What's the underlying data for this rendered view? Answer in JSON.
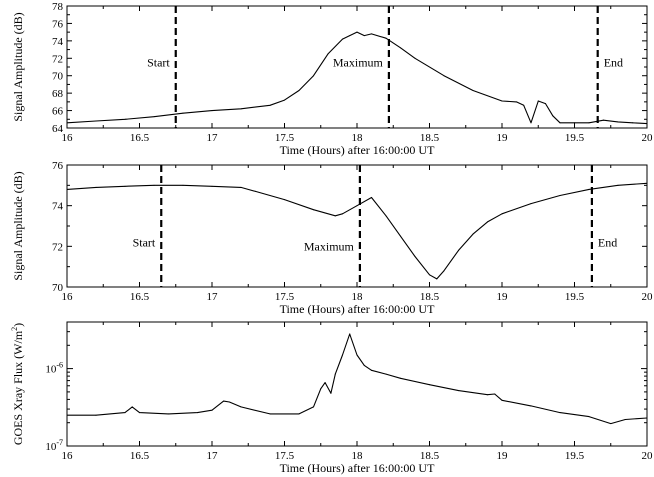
{
  "chart_data": [
    {
      "type": "line",
      "xlabel": "Time (Hours) after 16:00:00 UT",
      "ylabel": "Signal Amplitude (dB)",
      "xlim": [
        16,
        20
      ],
      "ylim": [
        64,
        78
      ],
      "xticks": [
        "16",
        "16.5",
        "17",
        "17.5",
        "18",
        "18.5",
        "19",
        "19.5",
        "20"
      ],
      "yticks": [
        "64",
        "66",
        "68",
        "70",
        "72",
        "74",
        "76",
        "78"
      ],
      "markers": [
        {
          "label": "Start",
          "x": 16.75,
          "label_y": 71.5
        },
        {
          "label": "Maximum",
          "x": 18.22,
          "label_y": 71.5
        },
        {
          "label": "End",
          "x": 19.66,
          "label_y": 71.5
        }
      ],
      "series": [
        {
          "x": [
            16.0,
            16.2,
            16.4,
            16.6,
            16.8,
            17.0,
            17.2,
            17.4,
            17.5,
            17.6,
            17.7,
            17.8,
            17.9,
            17.95,
            18.0,
            18.05,
            18.1,
            18.2,
            18.3,
            18.4,
            18.6,
            18.8,
            19.0,
            19.1,
            19.15,
            19.2,
            19.25,
            19.3,
            19.35,
            19.4,
            19.5,
            19.6,
            19.7,
            19.8,
            19.9,
            20.0
          ],
          "y": [
            64.6,
            64.8,
            65.0,
            65.3,
            65.7,
            66.0,
            66.2,
            66.6,
            67.2,
            68.3,
            70.0,
            72.5,
            74.2,
            74.6,
            75.0,
            74.6,
            74.8,
            74.3,
            73.2,
            72.0,
            70.0,
            68.3,
            67.1,
            67.0,
            66.6,
            64.6,
            67.1,
            66.8,
            65.4,
            64.6,
            64.6,
            64.6,
            64.9,
            64.7,
            64.6,
            64.5
          ]
        }
      ]
    },
    {
      "type": "line",
      "xlabel": "Time (Hours) after 16:00:00 UT",
      "ylabel": "Signal Amplitude (dB)",
      "xlim": [
        16,
        20
      ],
      "ylim": [
        70,
        76
      ],
      "xticks": [
        "16",
        "16.5",
        "17",
        "17.5",
        "18",
        "18.5",
        "19",
        "19.5",
        "20"
      ],
      "yticks": [
        "70",
        "72",
        "74",
        "76"
      ],
      "markers": [
        {
          "label": "Start",
          "x": 16.65,
          "label_y": 72.2
        },
        {
          "label": "Maximum",
          "x": 18.02,
          "label_y": 72.0
        },
        {
          "label": "End",
          "x": 19.62,
          "label_y": 72.2
        }
      ],
      "series": [
        {
          "x": [
            16.0,
            16.2,
            16.4,
            16.6,
            16.8,
            17.0,
            17.2,
            17.3,
            17.5,
            17.7,
            17.85,
            17.9,
            18.0,
            18.1,
            18.2,
            18.3,
            18.4,
            18.5,
            18.55,
            18.6,
            18.7,
            18.8,
            18.9,
            19.0,
            19.2,
            19.4,
            19.6,
            19.8,
            20.0
          ],
          "y": [
            74.8,
            74.9,
            74.95,
            75.0,
            75.0,
            74.95,
            74.9,
            74.7,
            74.3,
            73.8,
            73.5,
            73.6,
            74.0,
            74.4,
            73.5,
            72.5,
            71.5,
            70.6,
            70.4,
            70.8,
            71.8,
            72.6,
            73.2,
            73.6,
            74.1,
            74.5,
            74.8,
            75.0,
            75.1
          ]
        }
      ]
    },
    {
      "type": "line",
      "log_scale_y": true,
      "xlabel": "Time (Hours) after 16:00:00 UT",
      "ylabel": "GOES Xray Flux (W/m²)",
      "ylabel_main": "GOES Xray Flux (W/m",
      "ylabel_sup": "2",
      "ylabel_tail": ")",
      "xlim": [
        16,
        20
      ],
      "ylim": [
        1e-07,
        4e-06
      ],
      "xticks": [
        "16",
        "16.5",
        "17",
        "17.5",
        "18",
        "18.5",
        "19",
        "19.5",
        "20"
      ],
      "yticks": [
        {
          "value": 1e-07,
          "base": "10",
          "exp": "-7"
        },
        {
          "value": 1e-06,
          "base": "10",
          "exp": "-6"
        }
      ],
      "series": [
        {
          "x": [
            16.0,
            16.2,
            16.4,
            16.45,
            16.5,
            16.7,
            16.9,
            17.0,
            17.08,
            17.12,
            17.2,
            17.4,
            17.6,
            17.7,
            17.75,
            17.78,
            17.82,
            17.85,
            17.9,
            17.95,
            18.0,
            18.05,
            18.1,
            18.2,
            18.3,
            18.5,
            18.7,
            18.9,
            18.95,
            19.0,
            19.2,
            19.4,
            19.6,
            19.75,
            19.85,
            20.0
          ],
          "y": [
            2.5e-07,
            2.5e-07,
            2.7e-07,
            3.2e-07,
            2.7e-07,
            2.6e-07,
            2.7e-07,
            2.9e-07,
            3.8e-07,
            3.7e-07,
            3.2e-07,
            2.6e-07,
            2.6e-07,
            3.2e-07,
            5.5e-07,
            6.6e-07,
            4.8e-07,
            8.5e-07,
            1.5e-06,
            2.8e-06,
            1.5e-06,
            1.1e-06,
            9.5e-07,
            8.5e-07,
            7.5e-07,
            6.2e-07,
            5.2e-07,
            4.6e-07,
            4.7e-07,
            3.9e-07,
            3.3e-07,
            2.7e-07,
            2.4e-07,
            1.95e-07,
            2.2e-07,
            2.3e-07
          ]
        }
      ]
    }
  ]
}
